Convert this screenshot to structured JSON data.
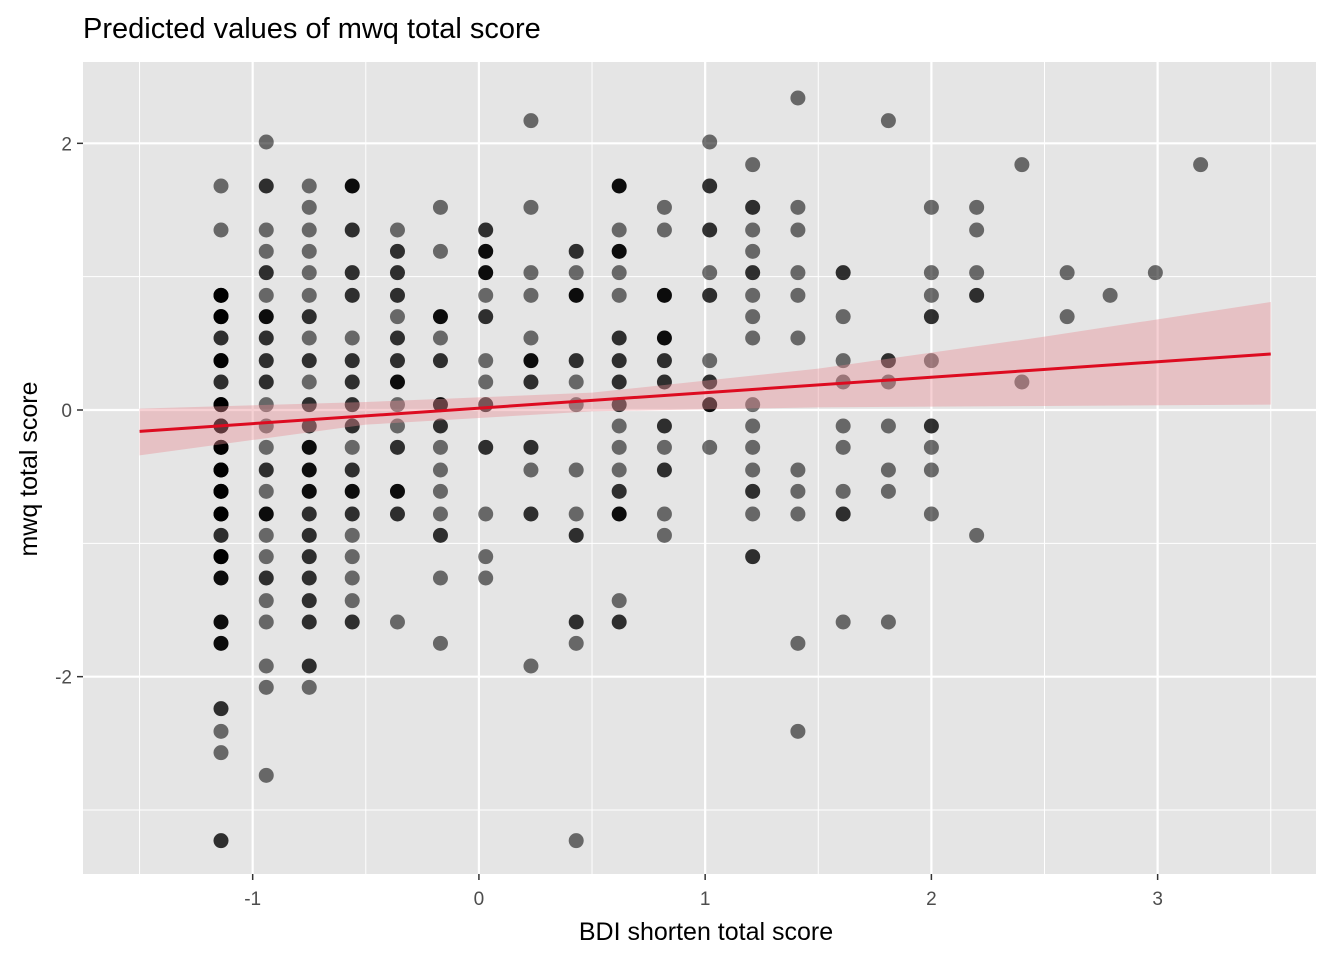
{
  "chart_data": {
    "type": "scatter",
    "title": "Predicted values of mwq total score",
    "xlabel": "BDI shorten total score",
    "ylabel": "mwq total score",
    "xlim": [
      -1.75,
      3.7
    ],
    "ylim": [
      -3.48,
      2.61
    ],
    "xticks": [
      -1,
      0,
      1,
      2,
      3
    ],
    "xtick_labels": [
      "-1",
      "0",
      "1",
      "2",
      "3"
    ],
    "yticks": [
      -2,
      0,
      2
    ],
    "ytick_labels": [
      "-2",
      "0",
      "2"
    ],
    "grid": true,
    "legend": "none",
    "colors": {
      "panel_background": "#e5e5e5",
      "grid_line": "#ffffff",
      "point": "#000000",
      "fit_line": "#dd0b20",
      "confidence_band": "#e88c94"
    },
    "fit_line": {
      "x": [
        -1.5,
        3.5
      ],
      "y": [
        -0.16,
        0.42
      ]
    },
    "confidence_band": {
      "x": [
        -1.5,
        -0.5,
        0.5,
        1.5,
        2.5,
        3.5
      ],
      "lower": [
        -0.34,
        -0.11,
        -0.01,
        0.02,
        0.03,
        0.04
      ],
      "upper": [
        0.01,
        0.06,
        0.13,
        0.31,
        0.55,
        0.81
      ]
    },
    "points": [
      {
        "x": -1.14,
        "y": [
          1.68,
          1.35,
          0.86,
          0.86,
          0.7,
          0.7,
          0.54,
          0.37,
          0.37,
          0.21,
          0.04,
          0.04,
          -0.12,
          -0.12,
          -0.28,
          -0.28,
          -0.45,
          -0.45,
          -0.61,
          -0.61,
          -0.78,
          -0.78,
          -0.94,
          -1.1,
          -1.1,
          -1.26,
          -1.59,
          -1.75,
          -2.24,
          -2.41,
          -2.57,
          -3.23
        ],
        "alpha": [
          0.55,
          0.55,
          0.95,
          0.95,
          0.95,
          0.95,
          0.8,
          0.95,
          0.8,
          0.8,
          0.95,
          0.95,
          0.95,
          0.95,
          0.95,
          0.95,
          0.95,
          0.95,
          0.95,
          0.95,
          0.95,
          0.95,
          0.8,
          0.95,
          0.95,
          0.95,
          0.95,
          0.95,
          0.8,
          0.55,
          0.55,
          0.8
        ]
      },
      {
        "x": -0.94,
        "y": [
          2.01,
          1.68,
          1.35,
          1.19,
          1.03,
          0.86,
          0.7,
          0.54,
          0.37,
          0.21,
          0.04,
          -0.12,
          -0.28,
          -0.45,
          -0.61,
          -0.78,
          -0.94,
          -1.1,
          -1.26,
          -1.43,
          -1.59,
          -1.92,
          -2.08,
          -2.74
        ],
        "alpha": [
          0.55,
          0.8,
          0.55,
          0.55,
          0.8,
          0.55,
          0.95,
          0.8,
          0.8,
          0.8,
          0.55,
          0.55,
          0.55,
          0.8,
          0.55,
          0.95,
          0.55,
          0.55,
          0.8,
          0.55,
          0.55,
          0.55,
          0.55,
          0.55
        ]
      },
      {
        "x": -0.75,
        "y": [
          1.68,
          1.52,
          1.35,
          1.19,
          1.03,
          0.86,
          0.7,
          0.54,
          0.37,
          0.21,
          0.04,
          -0.12,
          -0.28,
          -0.45,
          -0.61,
          -0.78,
          -0.94,
          -1.1,
          -1.26,
          -1.43,
          -1.59,
          -1.92,
          -2.08
        ],
        "alpha": [
          0.55,
          0.55,
          0.55,
          0.55,
          0.55,
          0.55,
          0.8,
          0.55,
          0.8,
          0.55,
          0.8,
          0.8,
          0.95,
          0.95,
          0.95,
          0.8,
          0.8,
          0.8,
          0.8,
          0.8,
          0.8,
          0.8,
          0.55
        ]
      },
      {
        "x": -0.56,
        "y": [
          1.68,
          1.35,
          1.03,
          0.86,
          0.54,
          0.37,
          0.21,
          0.04,
          -0.12,
          -0.28,
          -0.45,
          -0.61,
          -0.78,
          -0.94,
          -1.1,
          -1.26,
          -1.43,
          -1.59
        ],
        "alpha": [
          0.95,
          0.8,
          0.8,
          0.8,
          0.55,
          0.8,
          0.8,
          0.8,
          0.8,
          0.55,
          0.8,
          0.95,
          0.8,
          0.55,
          0.55,
          0.55,
          0.55,
          0.8
        ]
      },
      {
        "x": -0.36,
        "y": [
          1.35,
          1.19,
          1.03,
          0.86,
          0.7,
          0.54,
          0.37,
          0.21,
          0.04,
          -0.12,
          -0.28,
          -0.61,
          -0.78,
          -1.59
        ],
        "alpha": [
          0.55,
          0.8,
          0.8,
          0.8,
          0.55,
          0.8,
          0.8,
          0.95,
          0.55,
          0.55,
          0.8,
          0.95,
          0.8,
          0.55
        ]
      },
      {
        "x": -0.17,
        "y": [
          1.52,
          1.19,
          0.7,
          0.54,
          0.37,
          0.04,
          -0.12,
          -0.28,
          -0.45,
          -0.61,
          -0.78,
          -0.94,
          -1.26,
          -1.75
        ],
        "alpha": [
          0.55,
          0.55,
          0.95,
          0.55,
          0.8,
          0.95,
          0.8,
          0.55,
          0.55,
          0.55,
          0.55,
          0.8,
          0.55,
          0.55
        ]
      },
      {
        "x": 0.03,
        "y": [
          1.35,
          1.19,
          1.03,
          0.86,
          0.7,
          0.37,
          0.21,
          0.04,
          -0.28,
          -0.78,
          -1.1,
          -1.26
        ],
        "alpha": [
          0.8,
          0.95,
          0.95,
          0.55,
          0.8,
          0.55,
          0.55,
          0.8,
          0.8,
          0.55,
          0.55,
          0.55
        ]
      },
      {
        "x": 0.23,
        "y": [
          2.17,
          1.52,
          1.03,
          0.86,
          0.54,
          0.37,
          0.21,
          -0.28,
          -0.45,
          -0.78,
          -1.92
        ],
        "alpha": [
          0.55,
          0.55,
          0.55,
          0.55,
          0.55,
          0.95,
          0.8,
          0.8,
          0.55,
          0.8,
          0.55
        ]
      },
      {
        "x": 0.43,
        "y": [
          1.19,
          1.03,
          0.86,
          0.37,
          0.21,
          0.04,
          -0.45,
          -0.78,
          -0.94,
          -1.59,
          -1.75,
          -3.23
        ],
        "alpha": [
          0.8,
          0.55,
          0.95,
          0.8,
          0.55,
          0.55,
          0.55,
          0.55,
          0.8,
          0.8,
          0.55,
          0.55
        ]
      },
      {
        "x": 0.62,
        "y": [
          1.68,
          1.35,
          1.19,
          1.03,
          0.86,
          0.54,
          0.37,
          0.21,
          0.04,
          -0.12,
          -0.28,
          -0.45,
          -0.61,
          -0.78,
          -1.43,
          -1.59
        ],
        "alpha": [
          0.95,
          0.55,
          0.95,
          0.55,
          0.55,
          0.8,
          0.8,
          0.8,
          0.8,
          0.55,
          0.55,
          0.55,
          0.8,
          0.95,
          0.55,
          0.8
        ]
      },
      {
        "x": 0.82,
        "y": [
          1.52,
          1.35,
          0.86,
          0.54,
          0.37,
          0.21,
          -0.12,
          -0.28,
          -0.45,
          -0.78,
          -0.94
        ],
        "alpha": [
          0.55,
          0.55,
          0.95,
          0.95,
          0.8,
          0.8,
          0.8,
          0.55,
          0.8,
          0.55,
          0.55
        ]
      },
      {
        "x": 1.02,
        "y": [
          2.01,
          1.68,
          1.35,
          1.03,
          0.86,
          0.37,
          0.21,
          0.04,
          -0.28
        ],
        "alpha": [
          0.55,
          0.8,
          0.8,
          0.55,
          0.8,
          0.55,
          0.8,
          0.95,
          0.55
        ]
      },
      {
        "x": 1.21,
        "y": [
          1.84,
          1.52,
          1.35,
          1.19,
          1.03,
          0.86,
          0.7,
          0.54,
          0.04,
          -0.12,
          -0.28,
          -0.45,
          -0.61,
          -0.78,
          -1.1
        ],
        "alpha": [
          0.55,
          0.8,
          0.55,
          0.55,
          0.8,
          0.55,
          0.55,
          0.55,
          0.55,
          0.55,
          0.55,
          0.55,
          0.8,
          0.55,
          0.8
        ]
      },
      {
        "x": 1.41,
        "y": [
          2.34,
          1.52,
          1.35,
          1.03,
          0.86,
          0.54,
          -0.45,
          -0.61,
          -0.78,
          -1.75,
          -2.41
        ],
        "alpha": [
          0.55,
          0.55,
          0.55,
          0.55,
          0.55,
          0.55,
          0.55,
          0.55,
          0.55,
          0.55,
          0.55
        ]
      },
      {
        "x": 1.61,
        "y": [
          1.03,
          0.7,
          0.37,
          0.21,
          -0.12,
          -0.28,
          -0.61,
          -0.78,
          -1.59
        ],
        "alpha": [
          0.8,
          0.55,
          0.55,
          0.55,
          0.55,
          0.55,
          0.55,
          0.8,
          0.55
        ]
      },
      {
        "x": 1.81,
        "y": [
          2.17,
          0.37,
          0.21,
          -0.12,
          -0.45,
          -0.61,
          -1.59
        ],
        "alpha": [
          0.55,
          0.8,
          0.55,
          0.55,
          0.55,
          0.55,
          0.55
        ]
      },
      {
        "x": 2.0,
        "y": [
          1.52,
          1.03,
          0.86,
          0.7,
          0.37,
          -0.12,
          -0.28,
          -0.45,
          -0.78
        ],
        "alpha": [
          0.55,
          0.55,
          0.55,
          0.8,
          0.55,
          0.8,
          0.55,
          0.55,
          0.55
        ]
      },
      {
        "x": 2.2,
        "y": [
          1.52,
          1.35,
          1.03,
          0.86,
          -0.94
        ],
        "alpha": [
          0.55,
          0.55,
          0.55,
          0.8,
          0.55
        ]
      },
      {
        "x": 2.4,
        "y": [
          1.84,
          0.21
        ],
        "alpha": [
          0.55,
          0.55
        ]
      },
      {
        "x": 2.6,
        "y": [
          1.03,
          0.7
        ],
        "alpha": [
          0.55,
          0.55
        ]
      },
      {
        "x": 2.79,
        "y": [
          0.86
        ],
        "alpha": [
          0.55
        ]
      },
      {
        "x": 2.99,
        "y": [
          1.03
        ],
        "alpha": [
          0.55
        ]
      },
      {
        "x": 3.19,
        "y": [
          1.84
        ],
        "alpha": [
          0.55
        ]
      }
    ]
  }
}
